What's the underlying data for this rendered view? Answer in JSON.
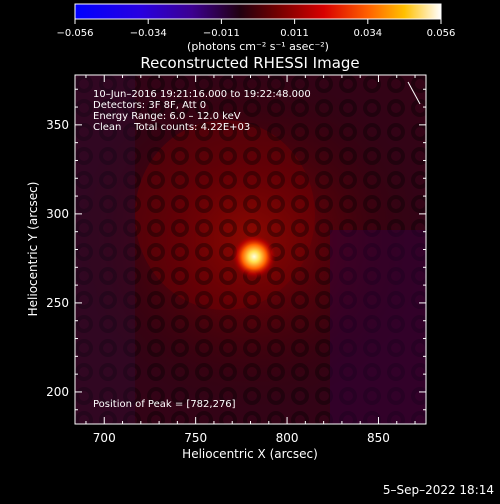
{
  "colorbar": {
    "tick_labels": [
      "−0.056",
      "−0.034",
      "−0.011",
      "0.011",
      "0.034",
      "0.056"
    ],
    "units": "(photons cm⁻² s⁻¹ asec⁻²)",
    "range": [
      -0.056,
      0.056
    ]
  },
  "plot": {
    "title": "Reconstructed RHESSI Image",
    "info_lines": [
      "10–Jun–2016 19:21:16.000 to 19:22:48.000",
      "Detectors: 3F 8F, Att 0",
      "Energy Range: 6.0 – 12.0 keV",
      "Clean    Total counts: 4.22E+03"
    ],
    "peak_text": "Position of Peak = [782,276]",
    "x_label": "Heliocentric X (arcsec)",
    "y_label": "Heliocentric Y (arcsec)",
    "x_ticks": [
      "700",
      "750",
      "800",
      "850"
    ],
    "y_ticks": [
      "200",
      "250",
      "300",
      "350"
    ],
    "x_range": [
      684,
      876
    ],
    "y_range": [
      182,
      378
    ],
    "peak_position": [
      782,
      276
    ]
  },
  "footer": {
    "timestamp": "5–Sep–2022 18:14"
  },
  "colors": {
    "background": "#000000",
    "axes": "#ffffff",
    "peak": "#ffffe0"
  }
}
